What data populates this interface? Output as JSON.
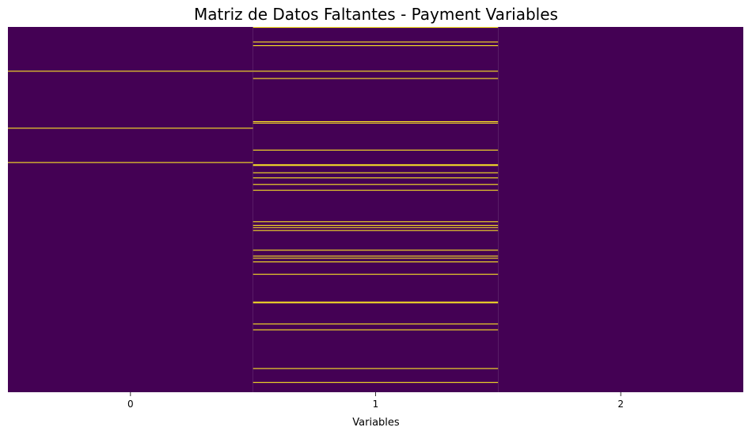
{
  "chart_data": {
    "type": "heatmap",
    "title": "Matriz de Datos Faltantes - Payment Variables",
    "xlabel": "Variables",
    "ylabel": "",
    "columns": [
      "0",
      "1",
      "2"
    ],
    "row_count": 1000,
    "colors": {
      "present": "#440154",
      "missing": "#fde725"
    },
    "legend": "none",
    "missing_rows": [
      {
        "column": "0",
        "rows": [
          120,
          276,
          370
        ]
      },
      {
        "column": "1",
        "rows": [
          0,
          40,
          50,
          120,
          140,
          258,
          262,
          336,
          376,
          377,
          378,
          398,
          412,
          430,
          446,
          532,
          542,
          548,
          556,
          610,
          626,
          632,
          642,
          676,
          752,
          754,
          812,
          828,
          934,
          972
        ]
      },
      {
        "column": "2",
        "rows": []
      }
    ]
  }
}
